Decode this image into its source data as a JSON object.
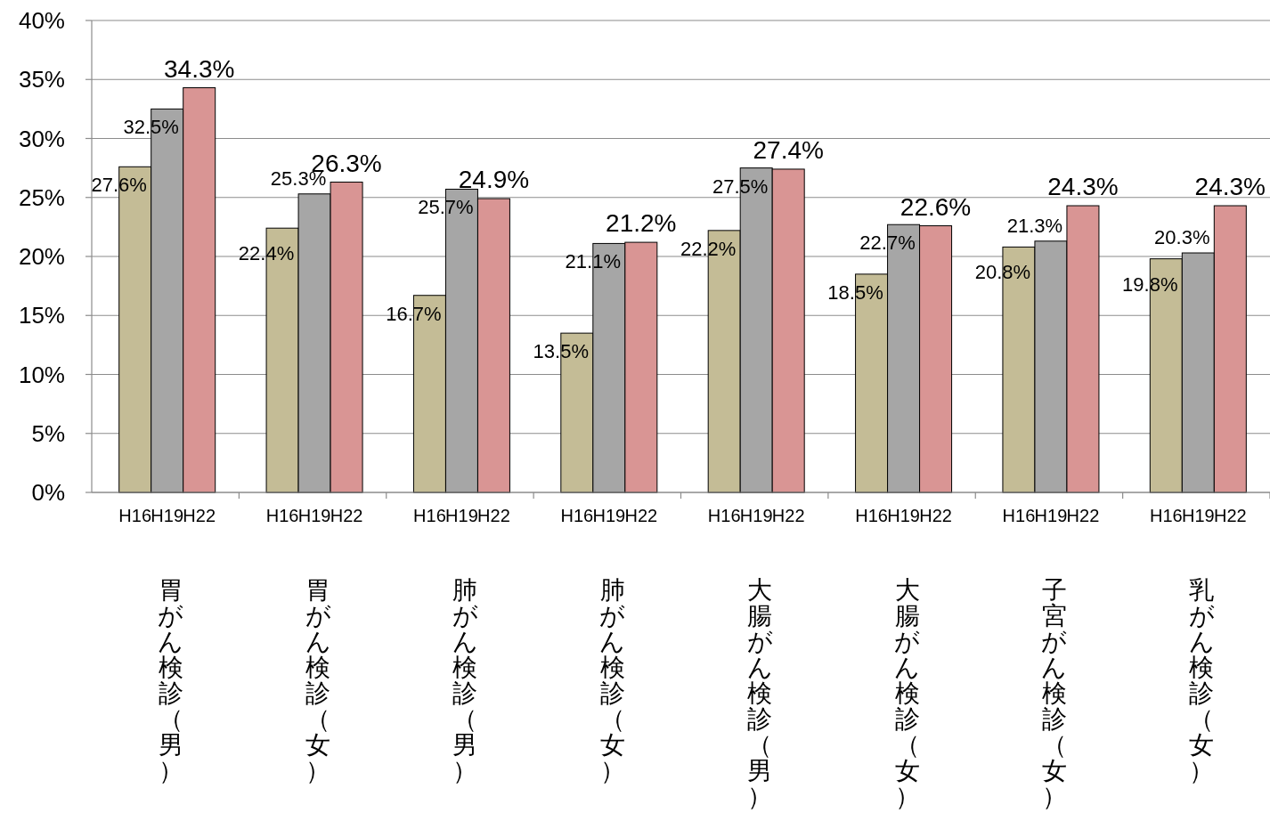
{
  "chart_data": {
    "type": "bar",
    "categories": [
      "胃がん検診（男）",
      "胃がん検診（女）",
      "肺がん検診（男）",
      "肺がん検診（女）",
      "大腸がん検診（男）",
      "大腸がん検診（女）",
      "子宮がん検診（女）",
      "乳がん検診（女）"
    ],
    "series": [
      {
        "name": "H16",
        "color": "#c4bc96",
        "values": [
          27.6,
          22.4,
          16.7,
          13.5,
          22.2,
          18.5,
          20.8,
          19.8
        ],
        "value_labels": [
          "27.6%",
          "22.4%",
          "16.7%",
          "13.5%",
          "22.2%",
          "18.5%",
          "20.8%",
          "19.8%"
        ]
      },
      {
        "name": "H19",
        "color": "#a6a6a6",
        "values": [
          32.5,
          25.3,
          25.7,
          21.1,
          27.5,
          22.7,
          21.3,
          20.3
        ],
        "value_labels": [
          "32.5%",
          "25.3%",
          "25.7%",
          "21.1%",
          "27.5%",
          "22.7%",
          "21.3%",
          "20.3%"
        ]
      },
      {
        "name": "H22",
        "color": "#d99594",
        "values": [
          34.3,
          26.3,
          24.9,
          21.2,
          27.4,
          22.6,
          24.3,
          24.3
        ],
        "value_labels": [
          "34.3%",
          "26.3%",
          "24.9%",
          "21.2%",
          "27.4%",
          "22.6%",
          "24.3%",
          "24.3%"
        ]
      }
    ],
    "ylim": [
      0,
      40
    ],
    "yticks": [
      {
        "value": 0,
        "label": "0%"
      },
      {
        "value": 5,
        "label": "5%"
      },
      {
        "value": 10,
        "label": "10%"
      },
      {
        "value": 15,
        "label": "15%"
      },
      {
        "value": 20,
        "label": "20%"
      },
      {
        "value": 25,
        "label": "25%"
      },
      {
        "value": 30,
        "label": "30%"
      },
      {
        "value": 35,
        "label": "35%"
      },
      {
        "value": 40,
        "label": "40%"
      }
    ],
    "grid": "y",
    "legend": false
  }
}
